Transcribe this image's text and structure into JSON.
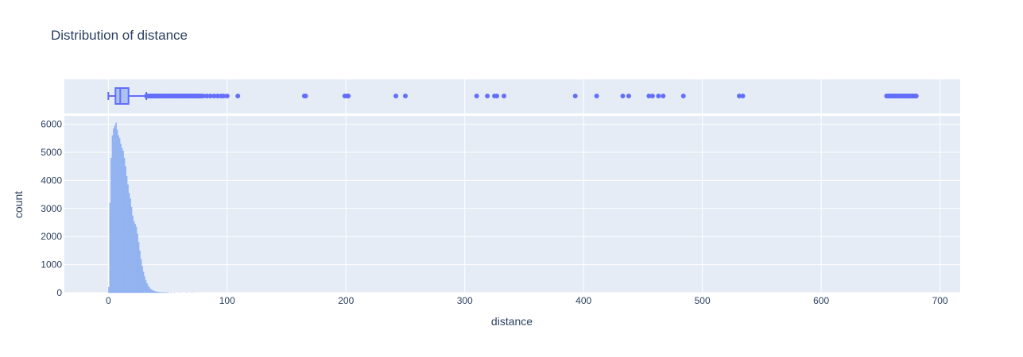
{
  "chart_data": {
    "type": "histogram",
    "title": "Distribution of distance",
    "xlabel": "distance",
    "ylabel": "count",
    "xlim": [
      -37,
      717
    ],
    "ylim": [
      0,
      6300
    ],
    "x_ticks": [
      0,
      100,
      200,
      300,
      400,
      500,
      600,
      700
    ],
    "y_ticks": [
      0,
      1000,
      2000,
      3000,
      4000,
      5000,
      6000
    ],
    "grid": true,
    "legend": "none",
    "colors": {
      "marker": "#636efa",
      "bar": "#8fb1f0",
      "box_fill": "#a9c2f2",
      "plot_bg": "#e5ecf6",
      "grid": "#ffffff",
      "text": "#2a3f5f"
    },
    "histogram": {
      "bin_width": 1,
      "counts": [
        [
          0,
          200
        ],
        [
          1,
          3200
        ],
        [
          2,
          4800
        ],
        [
          3,
          5600
        ],
        [
          4,
          5850
        ],
        [
          5,
          5950
        ],
        [
          6,
          6050
        ],
        [
          7,
          5800
        ],
        [
          8,
          5600
        ],
        [
          9,
          5500
        ],
        [
          10,
          5300
        ],
        [
          11,
          5150
        ],
        [
          12,
          5050
        ],
        [
          13,
          4800
        ],
        [
          14,
          4500
        ],
        [
          15,
          4150
        ],
        [
          16,
          3850
        ],
        [
          17,
          3550
        ],
        [
          18,
          3350
        ],
        [
          19,
          3050
        ],
        [
          20,
          2750
        ],
        [
          21,
          2550
        ],
        [
          22,
          2450
        ],
        [
          23,
          2350
        ],
        [
          24,
          2100
        ],
        [
          25,
          1800
        ],
        [
          26,
          1500
        ],
        [
          27,
          1200
        ],
        [
          28,
          950
        ],
        [
          29,
          750
        ],
        [
          30,
          580
        ],
        [
          31,
          440
        ],
        [
          32,
          330
        ],
        [
          33,
          250
        ],
        [
          34,
          190
        ],
        [
          35,
          140
        ],
        [
          36,
          105
        ],
        [
          37,
          80
        ],
        [
          38,
          60
        ],
        [
          39,
          45
        ],
        [
          40,
          35
        ],
        [
          41,
          27
        ],
        [
          42,
          20
        ],
        [
          43,
          15
        ],
        [
          44,
          12
        ],
        [
          45,
          10
        ],
        [
          46,
          8
        ],
        [
          47,
          6
        ],
        [
          48,
          5
        ],
        [
          49,
          4
        ],
        [
          50,
          3
        ],
        [
          52,
          2
        ],
        [
          55,
          2
        ],
        [
          60,
          1
        ],
        [
          65,
          1
        ],
        [
          70,
          1
        ]
      ]
    },
    "box": {
      "lower_fence": 0,
      "q1": 6,
      "median": 10,
      "q3": 17,
      "upper_fence": 32,
      "outlier_ranges": [
        [
          32,
          78
        ],
        [
          655,
          680
        ]
      ],
      "outliers": [
        80,
        83,
        86,
        89,
        92,
        95,
        97,
        100,
        109,
        165,
        166,
        199,
        201,
        202,
        242,
        250,
        310,
        319,
        325,
        327,
        333,
        393,
        411,
        433,
        438,
        455,
        458,
        463,
        467,
        484,
        531,
        534
      ]
    }
  }
}
